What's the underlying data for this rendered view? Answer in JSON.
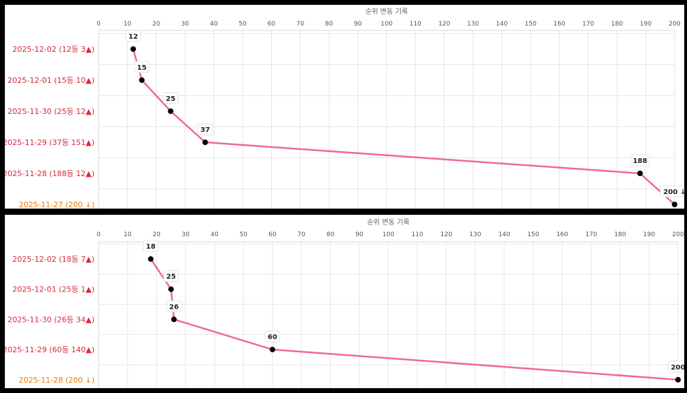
{
  "colors": {
    "line": "#f06a8c",
    "point": "#000000",
    "up_label": "#d9283c",
    "new_label": "#f07a00",
    "grid": "#e6e6e6"
  },
  "chart_data": [
    {
      "type": "line",
      "title": "순위 변동 기록",
      "x_axis": {
        "position": "top",
        "range": [
          0,
          200
        ],
        "ticks": [
          0,
          10,
          20,
          30,
          40,
          50,
          60,
          70,
          80,
          90,
          100,
          110,
          120,
          130,
          140,
          150,
          160,
          170,
          180,
          190,
          200
        ]
      },
      "grid": true,
      "categories": [
        "2025-12-02 (12등 3▲)",
        "2025-12-01 (15등 10▲)",
        "2025-11-30 (25등 12▲)",
        "2025-11-29 (37등 151▲)",
        "2025-11-28 (188등 12▲)",
        "2025-11-27 (200 ↓)"
      ],
      "category_status": [
        "up",
        "up",
        "up",
        "up",
        "up",
        "new"
      ],
      "values": [
        12,
        15,
        25,
        37,
        188,
        200
      ],
      "data_labels": [
        "12",
        "15",
        "25",
        "37",
        "188",
        "200 ↓"
      ]
    },
    {
      "type": "line",
      "title": "순위 변동 기록",
      "x_axis": {
        "position": "top",
        "range": [
          0,
          200
        ],
        "ticks": [
          0,
          10,
          20,
          30,
          40,
          50,
          60,
          70,
          80,
          90,
          100,
          110,
          120,
          130,
          140,
          150,
          160,
          170,
          180,
          190,
          200
        ]
      },
      "grid": true,
      "categories": [
        "2025-12-02 (18등 7▲)",
        "2025-12-01 (25등 1▲)",
        "2025-11-30 (26등 34▲)",
        "2025-11-29 (60등 140▲)",
        "2025-11-28 (200 ↓)"
      ],
      "category_status": [
        "up",
        "up",
        "up",
        "up",
        "new"
      ],
      "values": [
        18,
        25,
        26,
        60,
        200
      ],
      "data_labels": [
        "18",
        "25",
        "26",
        "60",
        "200"
      ]
    }
  ]
}
